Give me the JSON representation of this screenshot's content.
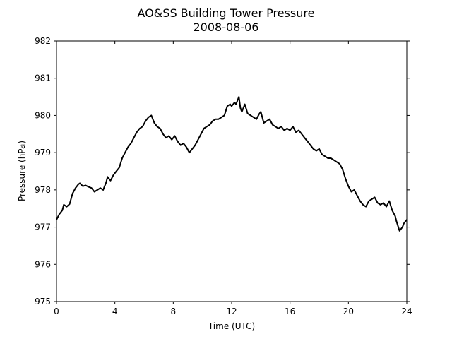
{
  "chart_data": {
    "type": "line",
    "title": "AO&SS Building Tower Pressure",
    "subtitle": "2008-08-06",
    "xlabel": "Time (UTC)",
    "ylabel": "Pressure (hPa)",
    "xlim": [
      0,
      24
    ],
    "ylim": [
      975,
      982
    ],
    "xticks": [
      0,
      4,
      8,
      12,
      16,
      20,
      24
    ],
    "yticks": [
      975,
      976,
      977,
      978,
      979,
      980,
      981,
      982
    ],
    "grid": false,
    "legend": "none",
    "line_color": "#000000",
    "series": [
      {
        "x": [
          0.0,
          0.2,
          0.4,
          0.5,
          0.7,
          0.9,
          1.1,
          1.3,
          1.5,
          1.6,
          1.8,
          2.0,
          2.2,
          2.4,
          2.6,
          2.8,
          3.0,
          3.2,
          3.4,
          3.5,
          3.7,
          3.9,
          4.1,
          4.3,
          4.5,
          4.7,
          4.9,
          5.1,
          5.3,
          5.5,
          5.7,
          5.9,
          6.1,
          6.3,
          6.5,
          6.7,
          6.9,
          7.1,
          7.3,
          7.5,
          7.7,
          7.9,
          8.1,
          8.3,
          8.5,
          8.7,
          8.9,
          9.1,
          9.3,
          9.5,
          9.7,
          9.9,
          10.1,
          10.3,
          10.5,
          10.7,
          10.9,
          11.1,
          11.3,
          11.5,
          11.7,
          11.9,
          12.0,
          12.2,
          12.3,
          12.5,
          12.6,
          12.7,
          12.9,
          13.1,
          13.3,
          13.5,
          13.7,
          13.9,
          14.0,
          14.2,
          14.4,
          14.6,
          14.8,
          15.0,
          15.2,
          15.4,
          15.6,
          15.8,
          16.0,
          16.2,
          16.4,
          16.6,
          16.8,
          17.0,
          17.2,
          17.4,
          17.6,
          17.8,
          18.0,
          18.2,
          18.4,
          18.6,
          18.8,
          19.0,
          19.2,
          19.4,
          19.6,
          19.8,
          20.0,
          20.2,
          20.4,
          20.6,
          20.8,
          21.0,
          21.2,
          21.4,
          21.6,
          21.8,
          22.0,
          22.2,
          22.4,
          22.6,
          22.8,
          23.0,
          23.2,
          23.3,
          23.5,
          23.7,
          23.8,
          24.0
        ],
        "values": [
          977.2,
          977.35,
          977.45,
          977.6,
          977.55,
          977.62,
          977.9,
          978.05,
          978.15,
          978.18,
          978.1,
          978.12,
          978.08,
          978.05,
          977.95,
          978.0,
          978.05,
          978.0,
          978.2,
          978.35,
          978.25,
          978.4,
          978.5,
          978.6,
          978.85,
          979.0,
          979.15,
          979.25,
          979.4,
          979.55,
          979.65,
          979.7,
          979.85,
          979.95,
          980.0,
          979.8,
          979.7,
          979.65,
          979.5,
          979.4,
          979.45,
          979.35,
          979.45,
          979.3,
          979.2,
          979.25,
          979.15,
          979.0,
          979.1,
          979.2,
          979.35,
          979.5,
          979.65,
          979.7,
          979.75,
          979.85,
          979.9,
          979.9,
          979.95,
          980.0,
          980.25,
          980.3,
          980.25,
          980.35,
          980.3,
          980.5,
          980.2,
          980.1,
          980.3,
          980.05,
          980.0,
          979.95,
          979.9,
          980.05,
          980.1,
          979.8,
          979.85,
          979.9,
          979.75,
          979.7,
          979.65,
          979.7,
          979.6,
          979.65,
          979.6,
          979.7,
          979.55,
          979.6,
          979.5,
          979.4,
          979.3,
          979.2,
          979.1,
          979.05,
          979.1,
          978.95,
          978.9,
          978.85,
          978.85,
          978.8,
          978.75,
          978.7,
          978.55,
          978.3,
          978.1,
          977.95,
          978.0,
          977.85,
          977.7,
          977.6,
          977.55,
          977.7,
          977.75,
          977.8,
          977.65,
          977.6,
          977.65,
          977.55,
          977.7,
          977.45,
          977.3,
          977.15,
          976.9,
          977.0,
          977.1,
          977.2
        ]
      }
    ]
  }
}
